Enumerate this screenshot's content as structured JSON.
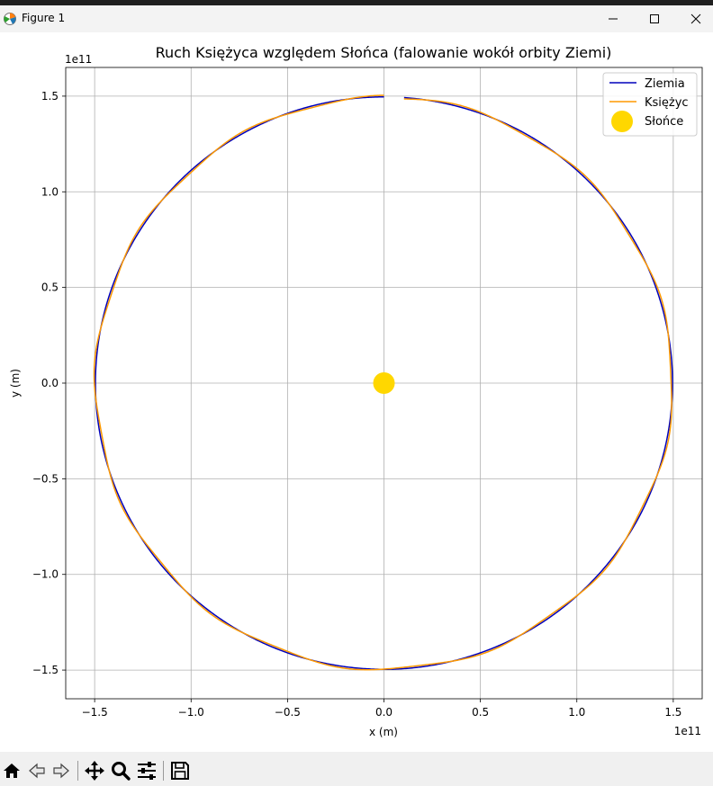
{
  "window": {
    "title": "Figure 1",
    "controls": {
      "minimize": "minimize-icon",
      "maximize": "maximize-icon",
      "close": "close-icon"
    }
  },
  "toolbar": {
    "icons": [
      "home-icon",
      "back-icon",
      "forward-icon",
      "pan-icon",
      "zoom-icon",
      "configure-subplots-icon",
      "save-icon"
    ]
  },
  "chart_data": {
    "type": "line",
    "title": "Ruch Księżyca względem Słońca (falowanie wokół orbity Ziemi)",
    "xlabel": "x (m)",
    "ylabel": "y (m)",
    "x_offset_text": "1e11",
    "y_offset_text": "1e11",
    "xlim": [
      -1.65,
      1.65
    ],
    "ylim": [
      -1.65,
      1.65
    ],
    "xticks": [
      -1.5,
      -1.0,
      -0.5,
      0.0,
      0.5,
      1.0,
      1.5
    ],
    "yticks": [
      -1.5,
      -1.0,
      -0.5,
      0.0,
      0.5,
      1.0,
      1.5
    ],
    "xtick_labels": [
      "−1.5",
      "−1.0",
      "−0.5",
      "0.0",
      "0.5",
      "1.0",
      "1.5"
    ],
    "ytick_labels": [
      "−1.5",
      "−1.0",
      "−0.5",
      "0.0",
      "0.5",
      "1.0",
      "1.5"
    ],
    "grid": true,
    "legend_position": "top-right",
    "series": [
      {
        "name": "Ziemia",
        "kind": "line",
        "color": "#0000bb",
        "orbit_radius": 1.496,
        "start_angle_deg": 90,
        "end_angle_deg": 446,
        "direction": "counterclockwise"
      },
      {
        "name": "Księżyc",
        "kind": "line",
        "color": "#ff9900",
        "orbit_radius": 1.496,
        "wobble_amplitude": 0.0084,
        "wobble_cycles": 12.4,
        "start_angle_deg": 90,
        "end_angle_deg": 446,
        "direction": "counterclockwise"
      },
      {
        "name": "Słońce",
        "kind": "point",
        "color": "#ffd700",
        "x": 0.0,
        "y": 0.0
      }
    ]
  }
}
